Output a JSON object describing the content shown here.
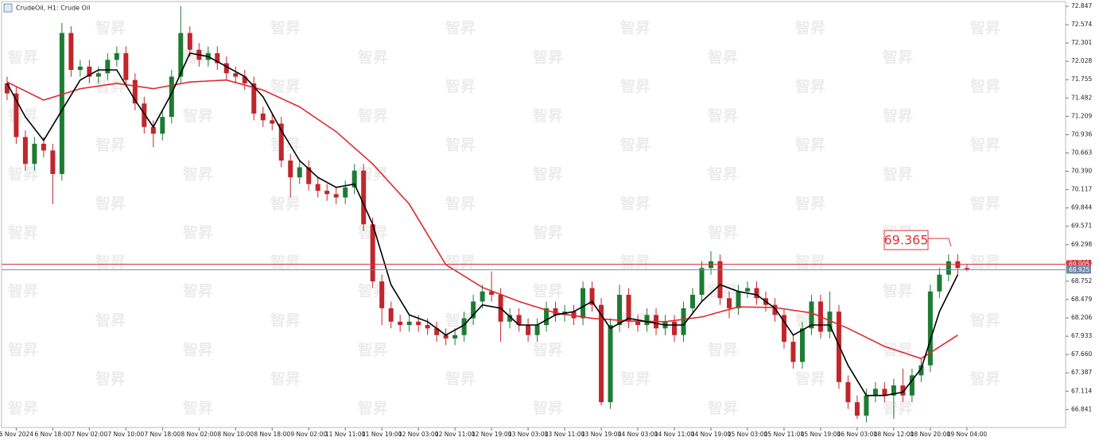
{
  "chart_data": {
    "type": "candlestick",
    "title": "CrudeOil, H1:  Crude Oil",
    "watermark": "智昇",
    "up_color": "#1e7b34",
    "down_color": "#c0262b",
    "xlim": [
      -1.6,
      114.8
    ],
    "ylim": [
      66.573,
      72.918
    ],
    "x": [
      -1,
      0,
      1,
      2,
      3,
      4,
      5,
      6,
      7,
      8,
      9,
      10,
      11,
      12,
      13,
      14,
      15,
      16,
      17,
      18,
      19,
      20,
      21,
      22,
      23,
      24,
      25,
      26,
      27,
      28,
      29,
      30,
      31,
      32,
      33,
      34,
      35,
      36,
      37,
      38,
      39,
      40,
      41,
      42,
      43,
      44,
      45,
      46,
      47,
      48,
      49,
      50,
      51,
      52,
      53,
      54,
      55,
      56,
      57,
      58,
      59,
      60,
      61,
      62,
      63,
      64,
      65,
      66,
      67,
      68,
      69,
      70,
      71,
      72,
      73,
      74,
      75,
      76,
      77,
      78,
      79,
      80,
      81,
      82,
      83,
      84,
      85,
      86,
      87,
      88,
      89,
      90,
      91,
      92,
      93,
      94,
      95,
      96,
      97,
      98,
      99,
      100,
      101,
      102,
      103,
      104
    ],
    "open": [
      71.7,
      71.55,
      70.9,
      70.5,
      70.8,
      70.7,
      70.35,
      72.45,
      71.9,
      71.95,
      71.8,
      71.85,
      72.05,
      72.15,
      71.75,
      71.4,
      71.05,
      70.95,
      71.2,
      71.8,
      72.45,
      72.2,
      72.05,
      72.15,
      72.0,
      71.85,
      71.8,
      71.7,
      71.25,
      71.15,
      71.1,
      70.55,
      70.3,
      70.45,
      70.2,
      70.1,
      70.05,
      70.0,
      70.15,
      70.4,
      69.6,
      68.75,
      68.35,
      68.15,
      68.1,
      68.15,
      68.1,
      68.05,
      67.95,
      67.9,
      67.95,
      68.2,
      68.45,
      68.6,
      68.55,
      68.15,
      68.25,
      68.1,
      67.95,
      68.1,
      68.35,
      68.25,
      68.3,
      68.2,
      68.65,
      68.4,
      66.95,
      68.1,
      68.55,
      68.15,
      68.1,
      68.25,
      68.05,
      68.15,
      67.95,
      68.35,
      68.55,
      68.95,
      69.05,
      68.5,
      68.35,
      68.6,
      68.65,
      68.5,
      68.4,
      68.25,
      67.85,
      67.55,
      68.05,
      68.45,
      68.0,
      68.3,
      67.25,
      66.95,
      66.75,
      67.05,
      67.15,
      67.05,
      67.2,
      67.05,
      67.35,
      67.5,
      68.6,
      68.85,
      69.05,
      68.95
    ],
    "high": [
      71.8,
      71.65,
      71.0,
      70.9,
      70.9,
      70.8,
      72.6,
      72.55,
      72.05,
      72.05,
      71.95,
      72.15,
      72.25,
      72.25,
      71.85,
      71.5,
      71.15,
      71.3,
      71.9,
      72.85,
      72.55,
      72.3,
      72.25,
      72.25,
      72.1,
      71.95,
      71.9,
      71.8,
      71.35,
      71.25,
      71.2,
      70.65,
      70.55,
      70.55,
      70.3,
      70.2,
      70.15,
      70.25,
      70.5,
      70.5,
      69.7,
      68.85,
      68.45,
      68.25,
      68.25,
      68.25,
      68.2,
      68.15,
      68.05,
      68.05,
      68.3,
      68.55,
      68.7,
      68.9,
      68.65,
      68.35,
      68.35,
      68.2,
      68.2,
      68.45,
      68.45,
      68.4,
      68.4,
      68.75,
      68.75,
      68.5,
      68.2,
      68.7,
      68.65,
      68.25,
      68.35,
      68.35,
      68.25,
      68.25,
      68.45,
      68.65,
      69.05,
      69.2,
      69.15,
      68.6,
      68.7,
      68.75,
      68.75,
      68.6,
      68.5,
      68.35,
      67.95,
      68.15,
      68.55,
      68.55,
      68.6,
      68.4,
      67.35,
      67.05,
      67.15,
      67.25,
      67.25,
      67.3,
      67.45,
      67.45,
      67.6,
      68.7,
      68.95,
      69.15,
      69.15,
      69.0
    ],
    "low": [
      71.45,
      70.8,
      70.4,
      70.4,
      70.6,
      69.9,
      70.25,
      71.8,
      71.8,
      71.7,
      71.7,
      71.75,
      71.95,
      71.65,
      71.3,
      70.95,
      70.75,
      70.85,
      71.1,
      71.7,
      72.1,
      71.95,
      71.95,
      71.9,
      71.75,
      71.7,
      71.6,
      71.15,
      71.05,
      71.0,
      70.45,
      70.0,
      70.2,
      70.1,
      70.0,
      69.95,
      69.9,
      69.9,
      70.05,
      69.5,
      68.65,
      68.1,
      68.05,
      68.0,
      68.0,
      68.0,
      67.95,
      67.85,
      67.8,
      67.8,
      67.85,
      68.1,
      68.35,
      68.45,
      67.85,
      68.05,
      68.0,
      67.85,
      67.85,
      68.0,
      68.15,
      68.15,
      68.1,
      68.1,
      68.3,
      66.9,
      66.85,
      68.0,
      68.05,
      68.0,
      68.0,
      67.95,
      67.95,
      67.85,
      67.85,
      68.25,
      68.45,
      68.85,
      68.4,
      68.2,
      68.25,
      68.5,
      68.4,
      68.3,
      68.15,
      67.75,
      67.45,
      67.45,
      67.95,
      67.9,
      67.9,
      67.15,
      66.85,
      66.7,
      66.65,
      66.95,
      66.95,
      66.7,
      66.95,
      66.95,
      67.25,
      67.4,
      68.5,
      68.75,
      68.85,
      68.9
    ],
    "close": [
      71.55,
      70.9,
      70.5,
      70.8,
      70.7,
      70.35,
      72.45,
      71.9,
      71.95,
      71.8,
      71.85,
      72.05,
      72.15,
      71.75,
      71.4,
      71.05,
      70.95,
      71.2,
      71.8,
      72.45,
      72.2,
      72.05,
      72.15,
      72.0,
      71.85,
      71.8,
      71.7,
      71.25,
      71.15,
      71.1,
      70.55,
      70.3,
      70.45,
      70.2,
      70.1,
      70.05,
      70.0,
      70.15,
      70.4,
      69.6,
      68.75,
      68.35,
      68.15,
      68.1,
      68.15,
      68.1,
      68.05,
      67.95,
      67.9,
      67.95,
      68.2,
      68.45,
      68.6,
      68.55,
      68.15,
      68.25,
      68.1,
      67.95,
      68.1,
      68.35,
      68.25,
      68.3,
      68.2,
      68.65,
      68.4,
      66.95,
      68.1,
      68.55,
      68.15,
      68.1,
      68.25,
      68.05,
      68.15,
      67.95,
      68.35,
      68.55,
      68.95,
      69.05,
      68.5,
      68.35,
      68.6,
      68.65,
      68.5,
      68.4,
      68.25,
      67.85,
      67.55,
      68.05,
      68.45,
      68.0,
      68.3,
      67.25,
      66.95,
      66.75,
      67.05,
      67.15,
      67.05,
      67.2,
      67.05,
      67.35,
      67.5,
      68.6,
      68.85,
      69.05,
      68.95,
      68.93
    ],
    "lines": [
      {
        "color": "#e0282e",
        "x": [
          -1,
          3,
          7,
          11,
          15,
          19,
          23,
          27,
          31,
          35,
          39,
          43,
          47,
          51,
          55,
          59,
          63,
          67,
          71,
          75,
          79,
          83,
          87,
          91,
          95,
          99,
          103
        ],
        "values": [
          71.72,
          71.45,
          71.62,
          71.7,
          71.62,
          71.72,
          71.75,
          71.6,
          71.35,
          70.98,
          70.5,
          69.9,
          69.0,
          68.66,
          68.45,
          68.28,
          68.2,
          68.16,
          68.15,
          68.22,
          68.37,
          68.36,
          68.28,
          68.05,
          67.78,
          67.6,
          67.95
        ]
      },
      {
        "color": "#000000",
        "x": [
          -1,
          1,
          3,
          5,
          7,
          9,
          11,
          13,
          15,
          17,
          19,
          21,
          23,
          25,
          27,
          29,
          31,
          33,
          35,
          37,
          39,
          41,
          43,
          45,
          47,
          49,
          51,
          53,
          55,
          57,
          59,
          61,
          63,
          65,
          67,
          69,
          71,
          73,
          75,
          77,
          79,
          81,
          83,
          85,
          87,
          89,
          91,
          93,
          95,
          97,
          99,
          101,
          103
        ],
        "values": [
          71.7,
          71.2,
          70.85,
          71.3,
          71.75,
          71.9,
          71.9,
          71.45,
          71.05,
          71.55,
          72.15,
          72.1,
          71.95,
          71.8,
          71.5,
          71.0,
          70.55,
          70.3,
          70.15,
          70.2,
          69.6,
          68.7,
          68.25,
          68.15,
          67.95,
          68.1,
          68.4,
          68.35,
          68.1,
          68.1,
          68.25,
          68.3,
          68.45,
          68.05,
          68.2,
          68.15,
          68.1,
          68.1,
          68.45,
          68.7,
          68.6,
          68.55,
          68.35,
          67.95,
          68.1,
          68.1,
          67.5,
          67.05,
          67.05,
          67.1,
          67.45,
          68.3,
          68.85
        ]
      }
    ],
    "price_lines": [
      {
        "value": 69.005,
        "color": "#d9363e"
      },
      {
        "value": 68.925,
        "color": "#6f86a6"
      }
    ],
    "annotation": {
      "value": 69.365,
      "color": "#d9363e"
    },
    "xticks": [
      {
        "value": 0,
        "label": "6 Nov 2024"
      },
      {
        "value": 4,
        "label": "6 Nov 18:00"
      },
      {
        "value": 8,
        "label": "7 Nov 02:00"
      },
      {
        "value": 12,
        "label": "7 Nov 10:00"
      },
      {
        "value": 16,
        "label": "7 Nov 18:00"
      },
      {
        "value": 20,
        "label": "8 Nov 02:00"
      },
      {
        "value": 24,
        "label": "8 Nov 10:00"
      },
      {
        "value": 28,
        "label": "8 Nov 18:00"
      },
      {
        "value": 32,
        "label": "9 Nov 02:00"
      },
      {
        "value": 36,
        "label": "11 Nov 11:00"
      },
      {
        "value": 40,
        "label": "11 Nov 19:00"
      },
      {
        "value": 44,
        "label": "12 Nov 03:00"
      },
      {
        "value": 48,
        "label": "12 Nov 11:00"
      },
      {
        "value": 52,
        "label": "12 Nov 19:00"
      },
      {
        "value": 56,
        "label": "13 Nov 03:00"
      },
      {
        "value": 60,
        "label": "13 Nov 11:00"
      },
      {
        "value": 64,
        "label": "13 Nov 19:00"
      },
      {
        "value": 68,
        "label": "14 Nov 03:00"
      },
      {
        "value": 72,
        "label": "14 Nov 11:00"
      },
      {
        "value": 76,
        "label": "14 Nov 19:00"
      },
      {
        "value": 80,
        "label": "15 Nov 03:00"
      },
      {
        "value": 84,
        "label": "15 Nov 11:00"
      },
      {
        "value": 88,
        "label": "15 Nov 19:00"
      },
      {
        "value": 92,
        "label": "16 Nov 03:00"
      },
      {
        "value": 96,
        "label": "18 Nov 12:00"
      },
      {
        "value": 100,
        "label": "18 Nov 20:00"
      },
      {
        "value": 104,
        "label": "19 Nov 04:00"
      }
    ],
    "yticks": [
      72.847,
      72.574,
      72.301,
      72.028,
      71.755,
      71.482,
      71.209,
      70.936,
      70.663,
      {
        "value": 70.39,
        "label": "70.390"
      },
      70.117,
      69.844,
      69.571,
      69.298,
      69.025,
      68.752,
      68.479,
      68.206,
      67.933,
      {
        "value": 67.66,
        "label": "67.660"
      },
      67.387,
      67.114,
      66.841
    ]
  }
}
